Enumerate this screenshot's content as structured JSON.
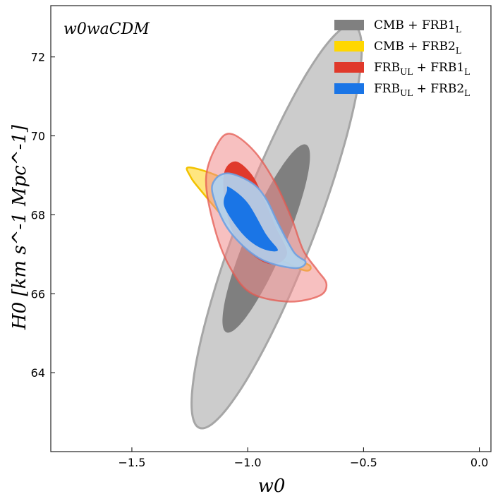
{
  "chart_data": {
    "type": "contour",
    "annotation": "w0waCDM",
    "xlabel": "w0",
    "ylabel": "H0 [km s^-1 Mpc^-1]",
    "xlim": [
      -1.85,
      0.05
    ],
    "ylim": [
      62.0,
      73.3
    ],
    "xticks": [
      -1.5,
      -1.0,
      -0.5,
      0.0
    ],
    "xtick_labels": [
      "−1.5",
      "−1.0",
      "−0.5",
      "0.0"
    ],
    "yticks": [
      64,
      66,
      68,
      70,
      72
    ],
    "ytick_labels": [
      "64",
      "66",
      "68",
      "70",
      "72"
    ],
    "legend_position": "top-right",
    "series": [
      {
        "name": "CMB + FRB1_L",
        "label_main": "CMB + FRB1",
        "label_sub": "L",
        "color": "#808080",
        "outer": {
          "cx": -0.875,
          "cy": 67.7,
          "semi_major": 0.93,
          "semi_minor": 0.165,
          "angle_deg": -69
        },
        "inner": {
          "cx": -0.92,
          "cy": 67.4,
          "semi_major": 0.44,
          "semi_minor": 0.085,
          "angle_deg": -67
        }
      },
      {
        "name": "CMB + FRB2_L",
        "label_main": "CMB + FRB2",
        "label_sub": "L",
        "color": "#FFD700",
        "outer": [
          [
            -1.25,
            69.2
          ],
          [
            -1.1,
            68.9
          ],
          [
            -0.95,
            68.2
          ],
          [
            -0.8,
            67.0
          ],
          [
            -0.73,
            66.7
          ],
          [
            -0.76,
            66.6
          ],
          [
            -0.9,
            67.0
          ],
          [
            -1.05,
            67.6
          ],
          [
            -1.2,
            68.6
          ],
          [
            -1.25,
            69.0
          ]
        ],
        "inner": null
      },
      {
        "name": "FRB_UL + FRB1_L",
        "label_main": "FRB + FRB1",
        "label_sub1": "UL",
        "label_sub2": "L",
        "color": "#E0392B",
        "outer": [
          [
            -1.07,
            70.05
          ],
          [
            -0.97,
            69.6
          ],
          [
            -0.88,
            68.8
          ],
          [
            -0.81,
            67.9
          ],
          [
            -0.76,
            67.1
          ],
          [
            -0.7,
            66.6
          ],
          [
            -0.66,
            66.25
          ],
          [
            -0.69,
            65.95
          ],
          [
            -0.82,
            65.8
          ],
          [
            -0.98,
            66.0
          ],
          [
            -1.07,
            66.6
          ],
          [
            -1.14,
            67.6
          ],
          [
            -1.18,
            68.9
          ],
          [
            -1.13,
            69.8
          ]
        ],
        "inner": [
          [
            -1.05,
            69.35
          ],
          [
            -0.98,
            69.0
          ],
          [
            -0.93,
            68.4
          ],
          [
            -0.88,
            67.7
          ],
          [
            -0.83,
            67.05
          ],
          [
            -0.88,
            66.75
          ],
          [
            -0.96,
            66.9
          ],
          [
            -1.06,
            67.5
          ],
          [
            -1.1,
            68.4
          ],
          [
            -1.1,
            69.1
          ]
        ]
      },
      {
        "name": "FRB_UL + FRB2_L",
        "label_main": "FRB + FRB2",
        "label_sub1": "UL",
        "label_sub2": "L",
        "color": "#1A75E6",
        "outer": [
          [
            -1.08,
            69.05
          ],
          [
            -0.98,
            68.8
          ],
          [
            -0.92,
            68.4
          ],
          [
            -0.87,
            67.8
          ],
          [
            -0.8,
            67.05
          ],
          [
            -0.75,
            66.8
          ],
          [
            -0.8,
            66.65
          ],
          [
            -0.95,
            66.9
          ],
          [
            -1.08,
            67.6
          ],
          [
            -1.15,
            68.5
          ],
          [
            -1.14,
            68.9
          ]
        ],
        "inner": [
          [
            -1.08,
            68.7
          ],
          [
            -1.0,
            68.3
          ],
          [
            -0.92,
            67.5
          ],
          [
            -0.87,
            67.1
          ],
          [
            -0.94,
            67.15
          ],
          [
            -1.02,
            67.5
          ],
          [
            -1.1,
            68.2
          ],
          [
            -1.09,
            68.6
          ]
        ]
      }
    ]
  }
}
